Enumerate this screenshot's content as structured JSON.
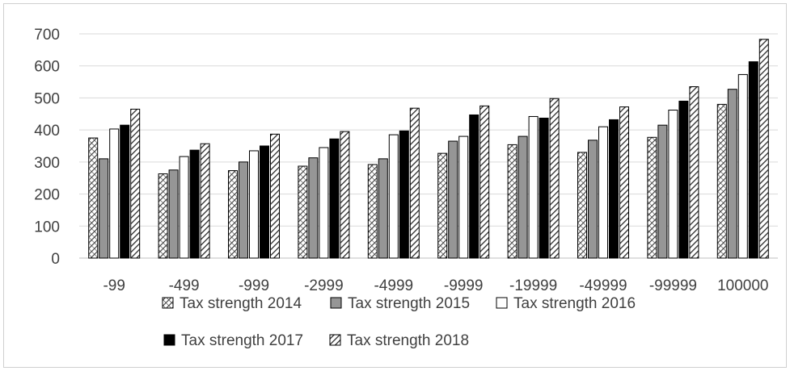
{
  "chart_data": {
    "type": "bar",
    "title": "",
    "xlabel": "",
    "ylabel": "",
    "ylim": [
      0,
      700
    ],
    "yticks": [
      0,
      100,
      200,
      300,
      400,
      500,
      600,
      700
    ],
    "grid": true,
    "legend_position": "bottom",
    "categories": [
      "-99",
      "-499",
      "-999",
      "-2999",
      "-4999",
      "-9999",
      "-19999",
      "-49999",
      "-99999",
      "100000"
    ],
    "series": [
      {
        "name": "Tax strength 2014",
        "pattern": "crosshatch",
        "color": "#404040",
        "values": [
          375,
          263,
          273,
          287,
          292,
          327,
          354,
          330,
          377,
          480
        ]
      },
      {
        "name": "Tax strength 2015",
        "pattern": "solid",
        "color": "#969696",
        "values": [
          310,
          275,
          300,
          313,
          310,
          365,
          380,
          368,
          415,
          527
        ]
      },
      {
        "name": "Tax strength 2016",
        "pattern": "solid",
        "color": "#ffffff",
        "values": [
          403,
          317,
          335,
          345,
          385,
          380,
          442,
          410,
          462,
          573
        ]
      },
      {
        "name": "Tax strength 2017",
        "pattern": "solid",
        "color": "#000000",
        "values": [
          415,
          337,
          350,
          372,
          397,
          447,
          437,
          432,
          490,
          613
        ]
      },
      {
        "name": "Tax strength 2018",
        "pattern": "diagonal",
        "color": "#404040",
        "values": [
          465,
          357,
          387,
          395,
          468,
          475,
          498,
          472,
          535,
          683
        ]
      }
    ]
  }
}
